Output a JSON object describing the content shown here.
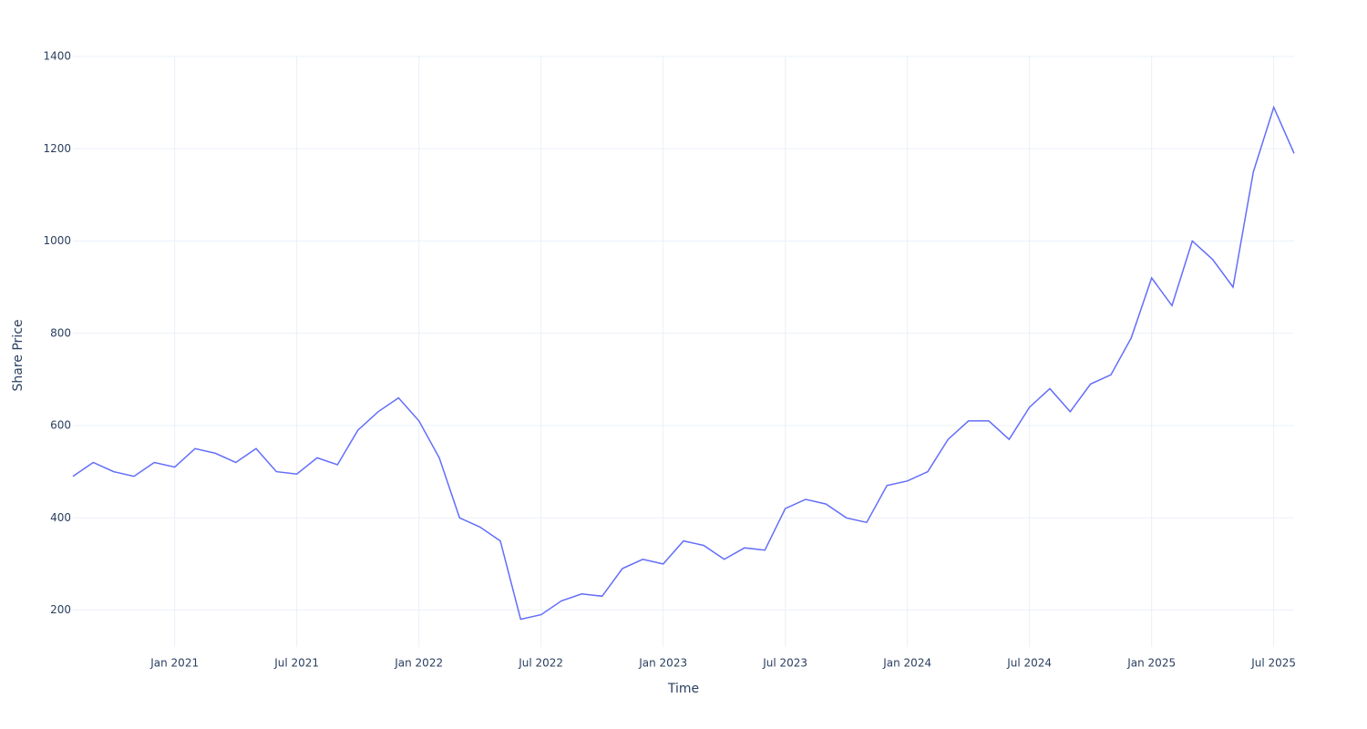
{
  "chart_data": {
    "type": "line",
    "x_title": "Time",
    "y_title": "Share Price",
    "x": [
      "2020-08",
      "2020-09",
      "2020-10",
      "2020-11",
      "2020-12",
      "2021-01",
      "2021-02",
      "2021-03",
      "2021-04",
      "2021-05",
      "2021-06",
      "2021-07",
      "2021-08",
      "2021-09",
      "2021-10",
      "2021-11",
      "2021-12",
      "2022-01",
      "2022-02",
      "2022-03",
      "2022-04",
      "2022-05",
      "2022-06",
      "2022-07",
      "2022-08",
      "2022-09",
      "2022-10",
      "2022-11",
      "2022-12",
      "2023-01",
      "2023-02",
      "2023-03",
      "2023-04",
      "2023-05",
      "2023-06",
      "2023-07",
      "2023-08",
      "2023-09",
      "2023-10",
      "2023-11",
      "2023-12",
      "2024-01",
      "2024-02",
      "2024-03",
      "2024-04",
      "2024-05",
      "2024-06",
      "2024-07",
      "2024-08",
      "2024-09",
      "2024-10",
      "2024-11",
      "2024-12",
      "2025-01",
      "2025-02",
      "2025-03",
      "2025-04",
      "2025-05",
      "2025-06",
      "2025-07",
      "2025-08"
    ],
    "series": [
      {
        "name": "Share Price",
        "color": "#636efa",
        "values": [
          490,
          520,
          500,
          490,
          520,
          510,
          550,
          540,
          520,
          550,
          500,
          495,
          530,
          515,
          590,
          630,
          660,
          610,
          530,
          400,
          380,
          350,
          180,
          190,
          220,
          235,
          230,
          290,
          310,
          300,
          350,
          340,
          310,
          335,
          330,
          420,
          440,
          430,
          400,
          390,
          470,
          480,
          500,
          570,
          610,
          610,
          570,
          640,
          680,
          630,
          690,
          710,
          790,
          920,
          860,
          1000,
          960,
          900,
          1150,
          1290,
          1190
        ]
      }
    ],
    "xlim": [
      "2020-08",
      "2025-08"
    ],
    "xticks": [
      {
        "value": "2021-01",
        "label": "Jan 2021"
      },
      {
        "value": "2021-07",
        "label": "Jul 2021"
      },
      {
        "value": "2022-01",
        "label": "Jan 2022"
      },
      {
        "value": "2022-07",
        "label": "Jul 2022"
      },
      {
        "value": "2023-01",
        "label": "Jan 2023"
      },
      {
        "value": "2023-07",
        "label": "Jul 2023"
      },
      {
        "value": "2024-01",
        "label": "Jan 2024"
      },
      {
        "value": "2024-07",
        "label": "Jul 2024"
      },
      {
        "value": "2025-01",
        "label": "Jan 2025"
      },
      {
        "value": "2025-07",
        "label": "Jul 2025"
      }
    ],
    "ylim": [
      120,
      1400
    ],
    "yticks": [
      200,
      400,
      600,
      800,
      1000,
      1200,
      1400
    ],
    "grid": true
  }
}
